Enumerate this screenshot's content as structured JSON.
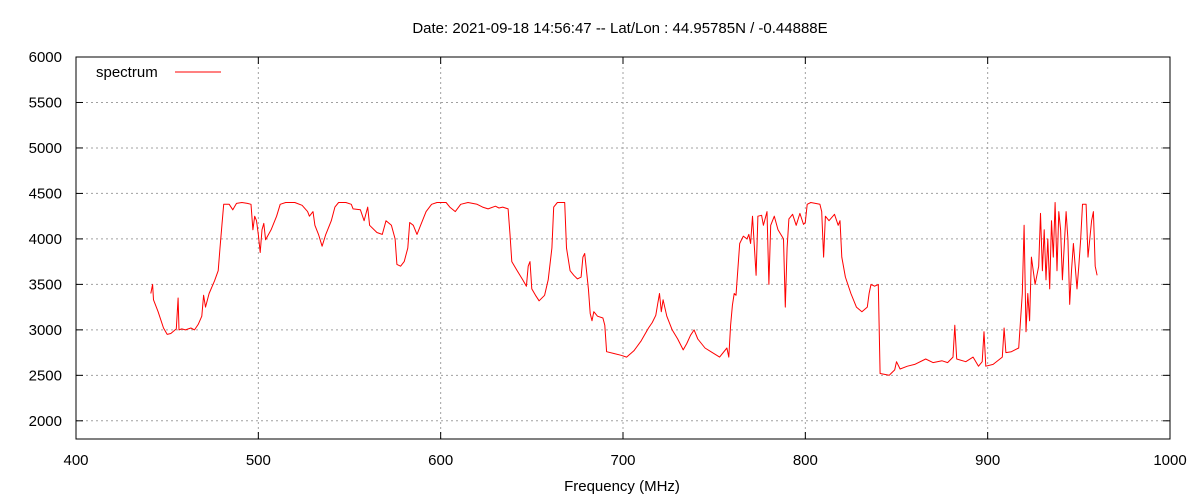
{
  "chart_data": {
    "type": "line",
    "title": "Date: 2021-09-18 14:56:47  --  Lat/Lon : 44.95785N / -0.44888E",
    "xlabel": "Frequency (MHz)",
    "ylabel": "",
    "xlim": [
      400,
      1000
    ],
    "ylim": [
      1800,
      6000
    ],
    "x_ticks": [
      400,
      500,
      600,
      700,
      800,
      900,
      1000
    ],
    "y_ticks": [
      2000,
      2500,
      3000,
      3500,
      4000,
      4500,
      5000,
      5500,
      6000
    ],
    "grid": true,
    "legend_position": "top-left",
    "series": [
      {
        "name": "spectrum",
        "color": "#ff0000",
        "points": [
          [
            441,
            3400
          ],
          [
            442,
            3500
          ],
          [
            442.5,
            3330
          ],
          [
            445,
            3200
          ],
          [
            448,
            3020
          ],
          [
            450,
            2950
          ],
          [
            452,
            2960
          ],
          [
            455,
            3010
          ],
          [
            456,
            3350
          ],
          [
            456.5,
            3000
          ],
          [
            458,
            3010
          ],
          [
            460,
            3000
          ],
          [
            463,
            3020
          ],
          [
            465,
            3000
          ],
          [
            467,
            3060
          ],
          [
            469,
            3150
          ],
          [
            470,
            3380
          ],
          [
            471,
            3250
          ],
          [
            473,
            3400
          ],
          [
            476,
            3540
          ],
          [
            478,
            3650
          ],
          [
            479,
            3900
          ],
          [
            480,
            4150
          ],
          [
            481,
            4380
          ],
          [
            484,
            4380
          ],
          [
            486,
            4320
          ],
          [
            488,
            4390
          ],
          [
            491,
            4400
          ],
          [
            494,
            4390
          ],
          [
            496,
            4380
          ],
          [
            497,
            4100
          ],
          [
            498,
            4250
          ],
          [
            499,
            4200
          ],
          [
            500,
            4050
          ],
          [
            501,
            3850
          ],
          [
            502,
            4100
          ],
          [
            503,
            4170
          ],
          [
            504,
            3990
          ],
          [
            507,
            4100
          ],
          [
            510,
            4250
          ],
          [
            512,
            4380
          ],
          [
            515,
            4400
          ],
          [
            520,
            4400
          ],
          [
            524,
            4370
          ],
          [
            527,
            4300
          ],
          [
            528,
            4250
          ],
          [
            530,
            4300
          ],
          [
            531,
            4150
          ],
          [
            533,
            4050
          ],
          [
            535,
            3920
          ],
          [
            537,
            4050
          ],
          [
            540,
            4200
          ],
          [
            542,
            4350
          ],
          [
            544,
            4400
          ],
          [
            548,
            4400
          ],
          [
            551,
            4380
          ],
          [
            552,
            4330
          ],
          [
            556,
            4320
          ],
          [
            558,
            4200
          ],
          [
            560,
            4350
          ],
          [
            561,
            4150
          ],
          [
            565,
            4070
          ],
          [
            568,
            4050
          ],
          [
            570,
            4200
          ],
          [
            573,
            4150
          ],
          [
            575,
            4000
          ],
          [
            576,
            3720
          ],
          [
            578,
            3700
          ],
          [
            580,
            3750
          ],
          [
            582,
            3900
          ],
          [
            583,
            4180
          ],
          [
            585,
            4150
          ],
          [
            587,
            4050
          ],
          [
            589,
            4150
          ],
          [
            592,
            4300
          ],
          [
            595,
            4380
          ],
          [
            598,
            4400
          ],
          [
            603,
            4400
          ],
          [
            605,
            4350
          ],
          [
            608,
            4300
          ],
          [
            611,
            4380
          ],
          [
            615,
            4400
          ],
          [
            620,
            4380
          ],
          [
            623,
            4350
          ],
          [
            626,
            4330
          ],
          [
            630,
            4360
          ],
          [
            632,
            4340
          ],
          [
            634,
            4350
          ],
          [
            637,
            4330
          ],
          [
            638,
            4050
          ],
          [
            639,
            3750
          ],
          [
            642,
            3650
          ],
          [
            645,
            3550
          ],
          [
            647,
            3480
          ],
          [
            648,
            3700
          ],
          [
            649,
            3750
          ],
          [
            650,
            3450
          ],
          [
            652,
            3380
          ],
          [
            654,
            3320
          ],
          [
            657,
            3380
          ],
          [
            659,
            3550
          ],
          [
            661,
            3900
          ],
          [
            662,
            4350
          ],
          [
            664,
            4400
          ],
          [
            668,
            4400
          ],
          [
            669,
            3900
          ],
          [
            671,
            3650
          ],
          [
            673,
            3600
          ],
          [
            675,
            3560
          ],
          [
            677,
            3580
          ],
          [
            678,
            3800
          ],
          [
            679,
            3840
          ],
          [
            680,
            3650
          ],
          [
            681,
            3450
          ],
          [
            682,
            3180
          ],
          [
            683,
            3100
          ],
          [
            684,
            3200
          ],
          [
            686,
            3150
          ],
          [
            689,
            3130
          ],
          [
            690,
            3050
          ],
          [
            691,
            2760
          ],
          [
            695,
            2740
          ],
          [
            699,
            2720
          ],
          [
            702,
            2700
          ],
          [
            706,
            2770
          ],
          [
            710,
            2880
          ],
          [
            714,
            3020
          ],
          [
            716,
            3080
          ],
          [
            718,
            3160
          ],
          [
            719,
            3280
          ],
          [
            720,
            3400
          ],
          [
            721,
            3200
          ],
          [
            722,
            3330
          ],
          [
            724,
            3150
          ],
          [
            727,
            3000
          ],
          [
            730,
            2900
          ],
          [
            733,
            2780
          ],
          [
            735,
            2850
          ],
          [
            737,
            2940
          ],
          [
            739,
            3000
          ],
          [
            741,
            2900
          ],
          [
            743,
            2850
          ],
          [
            745,
            2800
          ],
          [
            749,
            2750
          ],
          [
            753,
            2700
          ],
          [
            757,
            2800
          ],
          [
            758,
            2700
          ],
          [
            759,
            3050
          ],
          [
            760,
            3270
          ],
          [
            761,
            3400
          ],
          [
            762,
            3380
          ],
          [
            764,
            3950
          ],
          [
            766,
            4030
          ],
          [
            768,
            4000
          ],
          [
            769,
            4050
          ],
          [
            770,
            3950
          ],
          [
            771,
            4250
          ],
          [
            773,
            3600
          ],
          [
            774,
            4250
          ],
          [
            776,
            4260
          ],
          [
            777,
            4150
          ],
          [
            779,
            4300
          ],
          [
            780,
            3500
          ],
          [
            781,
            4150
          ],
          [
            783,
            4250
          ],
          [
            785,
            4100
          ],
          [
            788,
            4000
          ],
          [
            789,
            3250
          ],
          [
            790,
            3900
          ],
          [
            791,
            4220
          ],
          [
            793,
            4270
          ],
          [
            795,
            4150
          ],
          [
            797,
            4280
          ],
          [
            799,
            4160
          ],
          [
            800,
            4180
          ],
          [
            801,
            4380
          ],
          [
            803,
            4400
          ],
          [
            808,
            4380
          ],
          [
            809,
            4300
          ],
          [
            810,
            3800
          ],
          [
            811,
            4250
          ],
          [
            813,
            4200
          ],
          [
            816,
            4270
          ],
          [
            818,
            4150
          ],
          [
            819,
            4200
          ],
          [
            820,
            3800
          ],
          [
            822,
            3580
          ],
          [
            825,
            3400
          ],
          [
            828,
            3250
          ],
          [
            831,
            3200
          ],
          [
            834,
            3250
          ],
          [
            835,
            3400
          ],
          [
            836,
            3500
          ],
          [
            838,
            3480
          ],
          [
            840,
            3500
          ],
          [
            841,
            2520
          ],
          [
            846,
            2500
          ],
          [
            849,
            2560
          ],
          [
            850,
            2650
          ],
          [
            852,
            2570
          ],
          [
            856,
            2600
          ],
          [
            860,
            2620
          ],
          [
            866,
            2680
          ],
          [
            870,
            2640
          ],
          [
            875,
            2660
          ],
          [
            878,
            2640
          ],
          [
            881,
            2700
          ],
          [
            882,
            3050
          ],
          [
            883,
            2680
          ],
          [
            888,
            2650
          ],
          [
            892,
            2700
          ],
          [
            895,
            2600
          ],
          [
            897,
            2650
          ],
          [
            898,
            2980
          ],
          [
            899,
            2600
          ],
          [
            903,
            2620
          ],
          [
            908,
            2700
          ],
          [
            909,
            3020
          ],
          [
            910,
            2750
          ],
          [
            913,
            2760
          ],
          [
            917,
            2800
          ],
          [
            919,
            3400
          ],
          [
            920,
            4150
          ],
          [
            921,
            2980
          ],
          [
            922,
            3400
          ],
          [
            923,
            3100
          ],
          [
            924,
            3800
          ],
          [
            926,
            3500
          ],
          [
            928,
            3700
          ],
          [
            929,
            4280
          ],
          [
            930,
            3650
          ],
          [
            931,
            4100
          ],
          [
            932,
            3550
          ],
          [
            933,
            4000
          ],
          [
            934,
            3450
          ],
          [
            935,
            4200
          ],
          [
            936,
            3800
          ],
          [
            937,
            4400
          ],
          [
            938,
            3650
          ],
          [
            939,
            4300
          ],
          [
            940,
            4100
          ],
          [
            941,
            3550
          ],
          [
            943,
            4300
          ],
          [
            944,
            4000
          ],
          [
            945,
            3280
          ],
          [
            946,
            3650
          ],
          [
            947,
            3950
          ],
          [
            949,
            3450
          ],
          [
            950,
            3700
          ],
          [
            951,
            4000
          ],
          [
            952,
            4380
          ],
          [
            954,
            4380
          ],
          [
            955,
            3800
          ],
          [
            956,
            4000
          ],
          [
            957,
            4200
          ],
          [
            958,
            4300
          ],
          [
            959,
            3700
          ],
          [
            960,
            3600
          ]
        ]
      }
    ]
  }
}
